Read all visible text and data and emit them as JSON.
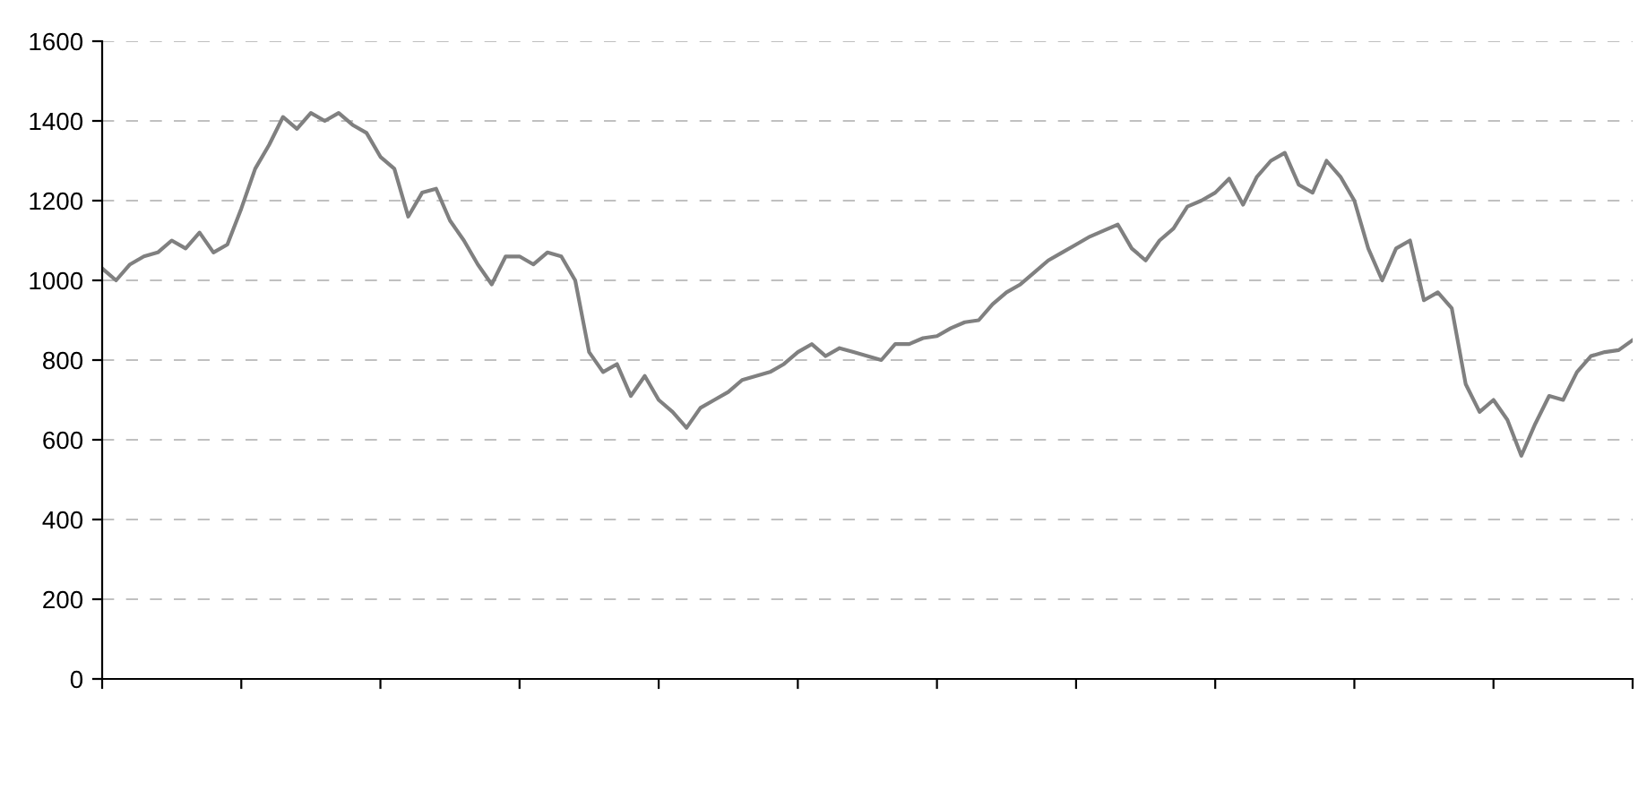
{
  "chart_data": {
    "type": "line",
    "relative": false,
    "categories": [
      null,
      null,
      null,
      null,
      null,
      null,
      null,
      null,
      null,
      null,
      null,
      null,
      null,
      null,
      null,
      null,
      null,
      null,
      null,
      null,
      null,
      null,
      null,
      null,
      null,
      null,
      null,
      null,
      null,
      null,
      null,
      null,
      null,
      null,
      null,
      null,
      null,
      null,
      null,
      null,
      null,
      null,
      null,
      null,
      null,
      null,
      null,
      null,
      null,
      null,
      null,
      null,
      null,
      null,
      null,
      null,
      null,
      null,
      null,
      null,
      null,
      null,
      null,
      null,
      null,
      null,
      null,
      null,
      null,
      null,
      null,
      null,
      null,
      null,
      null,
      null,
      null,
      null,
      null,
      null,
      null,
      null,
      null,
      null,
      null,
      null,
      null,
      null,
      null,
      null,
      null,
      null,
      null,
      null,
      null,
      null,
      null,
      null,
      null,
      null,
      null,
      null,
      null,
      null,
      null,
      null,
      null,
      null,
      null,
      null,
      null
    ],
    "series": [
      {
        "color": "#808080",
        "values": [
          1030,
          1000,
          1040,
          1060,
          1070,
          1100,
          1080,
          1120,
          1070,
          1090,
          1180,
          1280,
          1340,
          1410,
          1380,
          1420,
          1400,
          1420,
          1390,
          1370,
          1310,
          1280,
          1160,
          1220,
          1230,
          1150,
          1100,
          1040,
          990,
          1060,
          1060,
          1040,
          1070,
          1060,
          1000,
          820,
          770,
          790,
          710,
          760,
          700,
          670,
          630,
          680,
          700,
          720,
          750,
          760,
          770,
          790,
          820,
          840,
          810,
          830,
          820,
          810,
          800,
          840,
          840,
          855,
          860,
          880,
          895,
          900,
          940,
          970,
          990,
          1020,
          1050,
          1070,
          1090,
          1110,
          1125,
          1140,
          1080,
          1050,
          1100,
          1130,
          1185,
          1200,
          1220,
          1255,
          1190,
          1260,
          1300,
          1320,
          1240,
          1220,
          1300,
          1260,
          1200,
          1080,
          1000,
          1080,
          1100,
          950,
          970,
          930,
          740,
          670,
          700,
          650,
          560,
          640,
          710,
          700,
          770,
          810,
          820,
          825,
          850
        ]
      }
    ],
    "ylim": [
      0,
      1600
    ],
    "yticks": [
      0,
      200,
      400,
      600,
      800,
      1000,
      1200,
      1400,
      1600
    ],
    "grid": "y",
    "legend": false,
    "marker": "none",
    "line_style": "solid",
    "tick_labels": "y"
  }
}
